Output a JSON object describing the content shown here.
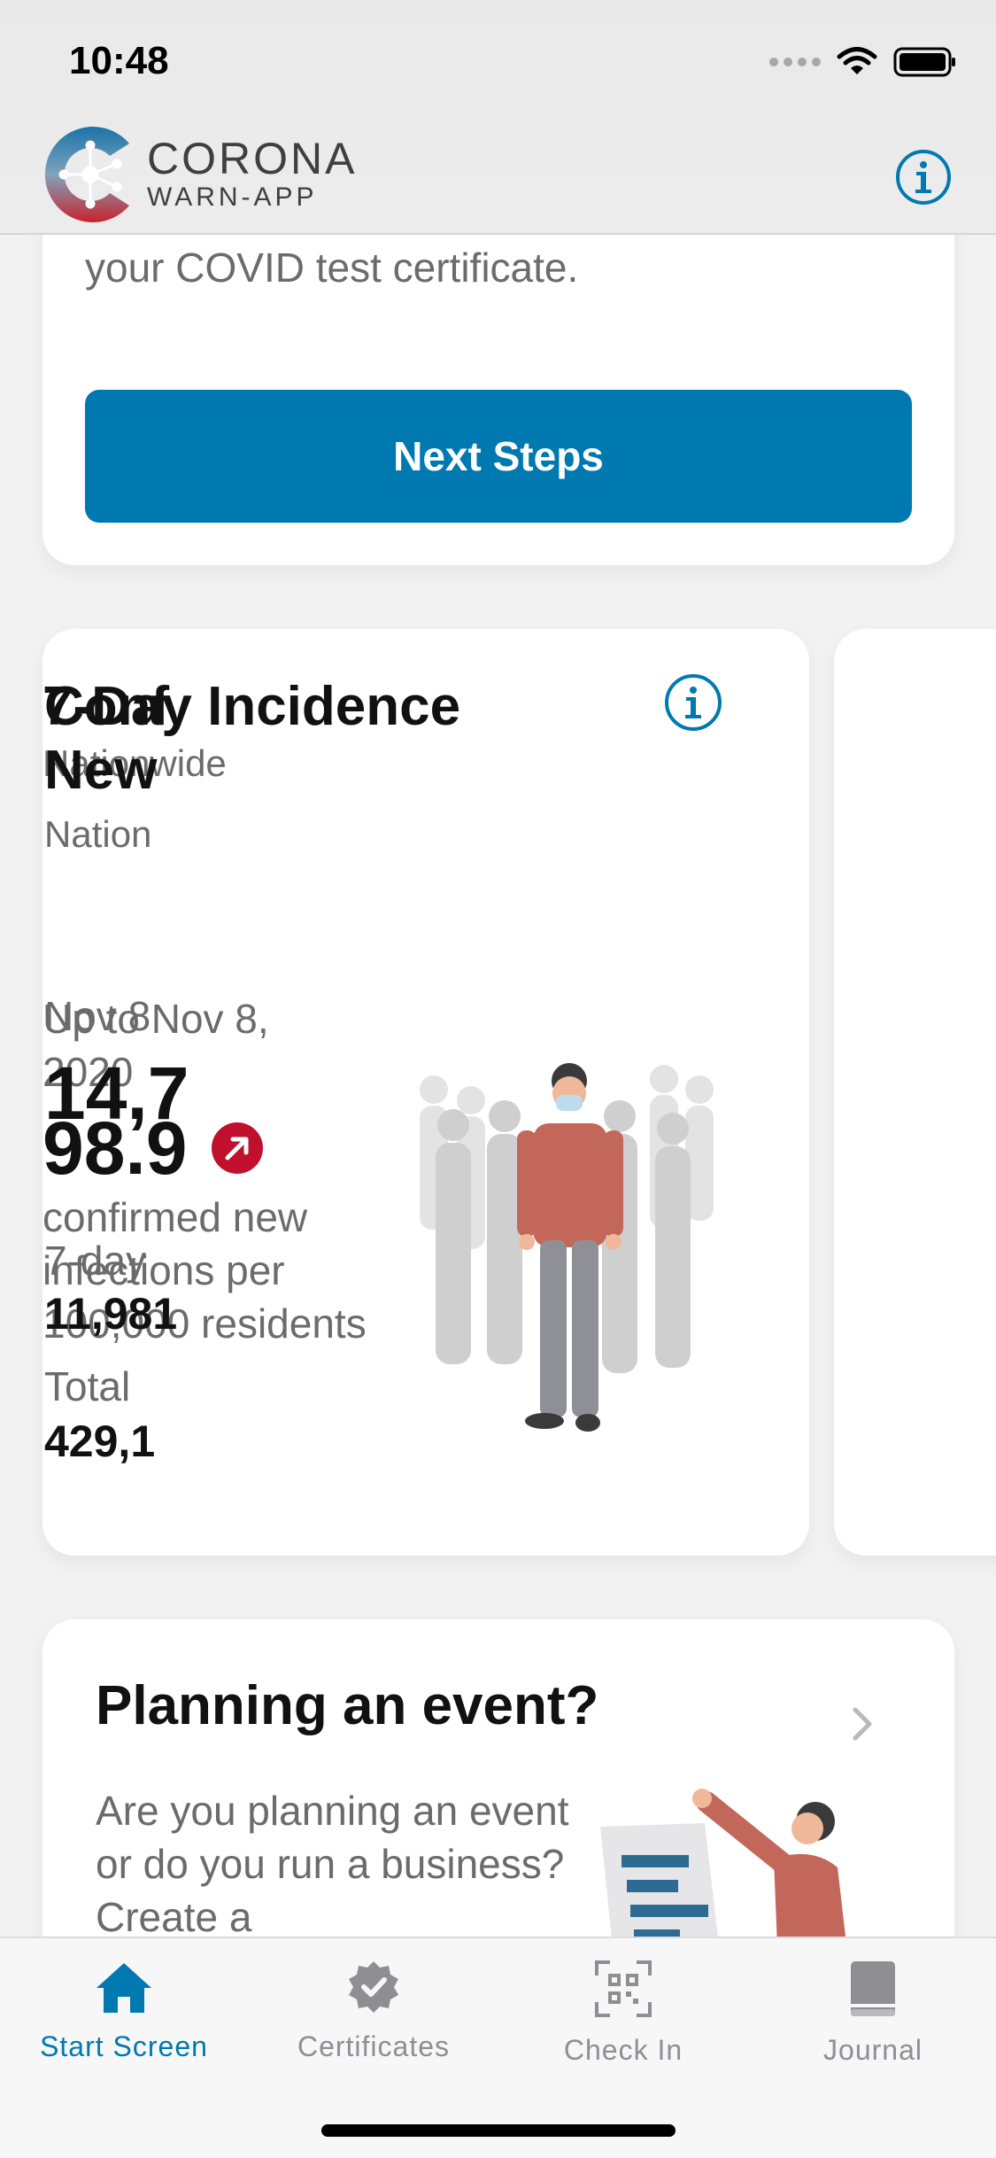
{
  "status_bar": {
    "time": "10:48"
  },
  "header": {
    "logo_line1": "CORONA",
    "logo_line2": "WARN-APP",
    "info_icon": "info-icon"
  },
  "test_card": {
    "text": "your COVID test certificate.",
    "button_label": "Next Steps",
    "button_color": "#0079b0"
  },
  "incidence_card": {
    "title": "7-Day Incidence",
    "subtitle": "Nationwide",
    "date": "Up to Nov 8, 2020",
    "value": "98.9",
    "trend_icon": "trend-up-icon",
    "trend_color": "#c0102e",
    "description": "confirmed new infections per 100,000 residents"
  },
  "confirmed_card": {
    "title_line1": "Conf",
    "title_line2": "New",
    "subtitle": "Nation",
    "date": "Nov 8",
    "value": "14,7",
    "seven_day_label": "7-day",
    "seven_day_value": "11,981",
    "total_label": "Total",
    "total_value": "429,1"
  },
  "event_card": {
    "title": "Planning an event?",
    "text": "Are you planning an event or do you run a business? Create a"
  },
  "tabbar": {
    "tabs": [
      {
        "label": "Start Screen",
        "icon": "home-icon",
        "active": true
      },
      {
        "label": "Certificates",
        "icon": "certificate-icon",
        "active": false
      },
      {
        "label": "Check In",
        "icon": "qr-code-icon",
        "active": false
      },
      {
        "label": "Journal",
        "icon": "journal-icon",
        "active": false
      }
    ],
    "active_color": "#0079b0",
    "inactive_color": "#8e8e93"
  }
}
